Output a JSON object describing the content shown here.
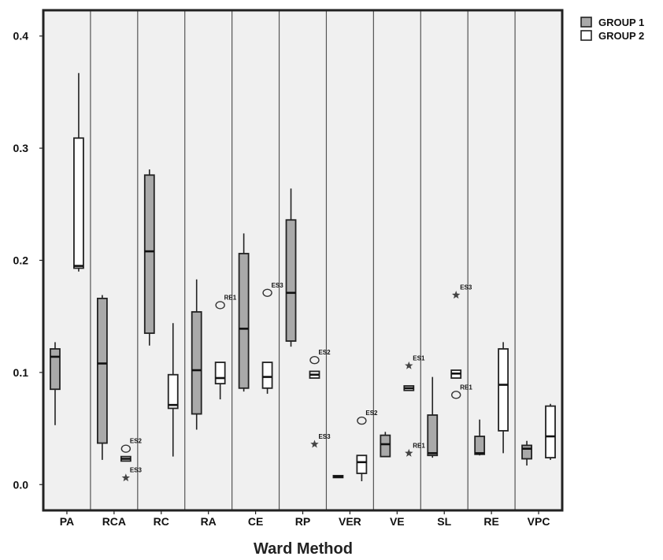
{
  "chart_data": {
    "type": "boxplot",
    "title": "",
    "xlabel": "Ward Method",
    "ylabel": "",
    "ylim": [
      -0.023,
      0.423
    ],
    "yticks": [
      "0.0",
      "0.1",
      "0.2",
      "0.3",
      "0.4"
    ],
    "ytick_values": [
      0.0,
      0.1,
      0.2,
      0.3,
      0.4
    ],
    "grid": false,
    "legend_position": "top-right",
    "categories": [
      "PA",
      "RCA",
      "RC",
      "RA",
      "CE",
      "RP",
      "VER",
      "VE",
      "SL",
      "RE",
      "VPC"
    ],
    "series": [
      {
        "name": "GROUP 1",
        "fill": "#a9a9a9",
        "boxes": [
          {
            "category": "PA",
            "min": 0.053,
            "q1": 0.085,
            "median": 0.114,
            "q3": 0.121,
            "max": 0.127
          },
          {
            "category": "RCA",
            "min": 0.022,
            "q1": 0.037,
            "median": 0.108,
            "q3": 0.166,
            "max": 0.169
          },
          {
            "category": "RC",
            "min": 0.124,
            "q1": 0.135,
            "median": 0.208,
            "q3": 0.276,
            "max": 0.281
          },
          {
            "category": "RA",
            "min": 0.049,
            "q1": 0.063,
            "median": 0.102,
            "q3": 0.154,
            "max": 0.183
          },
          {
            "category": "CE",
            "min": 0.083,
            "q1": 0.086,
            "median": 0.139,
            "q3": 0.206,
            "max": 0.224
          },
          {
            "category": "RP",
            "min": 0.123,
            "q1": 0.128,
            "median": 0.171,
            "q3": 0.236,
            "max": 0.264
          },
          {
            "category": "VER",
            "min": 0.007,
            "q1": 0.007,
            "median": 0.007,
            "q3": 0.008,
            "max": 0.008
          },
          {
            "category": "VE",
            "min": 0.025,
            "q1": 0.025,
            "median": 0.036,
            "q3": 0.044,
            "max": 0.047
          },
          {
            "category": "SL",
            "min": 0.024,
            "q1": 0.026,
            "median": 0.028,
            "q3": 0.062,
            "max": 0.096
          },
          {
            "category": "RE",
            "min": 0.026,
            "q1": 0.027,
            "median": 0.028,
            "q3": 0.043,
            "max": 0.058
          },
          {
            "category": "VPC",
            "min": 0.017,
            "q1": 0.023,
            "median": 0.032,
            "q3": 0.035,
            "max": 0.039
          }
        ]
      },
      {
        "name": "GROUP 2",
        "fill": "#ffffff",
        "boxes": [
          {
            "category": "PA",
            "min": 0.19,
            "q1": 0.193,
            "median": 0.195,
            "q3": 0.309,
            "max": 0.367
          },
          {
            "category": "RCA",
            "min": 0.021,
            "q1": 0.021,
            "median": 0.023,
            "q3": 0.025,
            "max": 0.025
          },
          {
            "category": "RC",
            "min": 0.025,
            "q1": 0.068,
            "median": 0.071,
            "q3": 0.098,
            "max": 0.144
          },
          {
            "category": "RA",
            "min": 0.076,
            "q1": 0.09,
            "median": 0.095,
            "q3": 0.109,
            "max": 0.109
          },
          {
            "category": "CE",
            "min": 0.081,
            "q1": 0.086,
            "median": 0.096,
            "q3": 0.109,
            "max": 0.109
          },
          {
            "category": "RP",
            "min": 0.095,
            "q1": 0.095,
            "median": 0.098,
            "q3": 0.101,
            "max": 0.101
          },
          {
            "category": "VER",
            "min": 0.003,
            "q1": 0.01,
            "median": 0.02,
            "q3": 0.026,
            "max": 0.026
          },
          {
            "category": "VE",
            "min": 0.084,
            "q1": 0.084,
            "median": 0.086,
            "q3": 0.088,
            "max": 0.088
          },
          {
            "category": "SL",
            "min": 0.095,
            "q1": 0.095,
            "median": 0.099,
            "q3": 0.102,
            "max": 0.102
          },
          {
            "category": "RE",
            "min": 0.028,
            "q1": 0.048,
            "median": 0.089,
            "q3": 0.121,
            "max": 0.127
          },
          {
            "category": "VPC",
            "min": 0.022,
            "q1": 0.024,
            "median": 0.043,
            "q3": 0.07,
            "max": 0.072
          }
        ]
      }
    ],
    "outliers": [
      {
        "category": "RCA",
        "group": 2,
        "marker": "circle",
        "value": 0.032,
        "label": "ES2"
      },
      {
        "category": "RCA",
        "group": 2,
        "marker": "star",
        "value": 0.006,
        "label": "ES3"
      },
      {
        "category": "RA",
        "group": 2,
        "marker": "circle",
        "value": 0.16,
        "label": "RE1"
      },
      {
        "category": "CE",
        "group": 2,
        "marker": "circle",
        "value": 0.171,
        "label": "ES3"
      },
      {
        "category": "RP",
        "group": 2,
        "marker": "circle",
        "value": 0.111,
        "label": "ES2"
      },
      {
        "category": "RP",
        "group": 2,
        "marker": "star",
        "value": 0.036,
        "label": "ES3"
      },
      {
        "category": "VER",
        "group": 2,
        "marker": "circle",
        "value": 0.057,
        "label": "ES2"
      },
      {
        "category": "VE",
        "group": 2,
        "marker": "star",
        "value": 0.106,
        "label": "ES1"
      },
      {
        "category": "VE",
        "group": 2,
        "marker": "star",
        "value": 0.028,
        "label": "RE1"
      },
      {
        "category": "SL",
        "group": 2,
        "marker": "star",
        "value": 0.169,
        "label": "ES3"
      },
      {
        "category": "SL",
        "group": 2,
        "marker": "circle",
        "value": 0.08,
        "label": "RE1"
      }
    ]
  },
  "legend": {
    "items": [
      {
        "label": "GROUP 1",
        "fill": "#a9a9a9"
      },
      {
        "label": "GROUP 2",
        "fill": "#ffffff"
      }
    ]
  },
  "colors": {
    "plot_background": "#f0f0f0",
    "frame": "#222222",
    "group1_fill": "#a9a9a9",
    "group2_fill": "#ffffff"
  }
}
